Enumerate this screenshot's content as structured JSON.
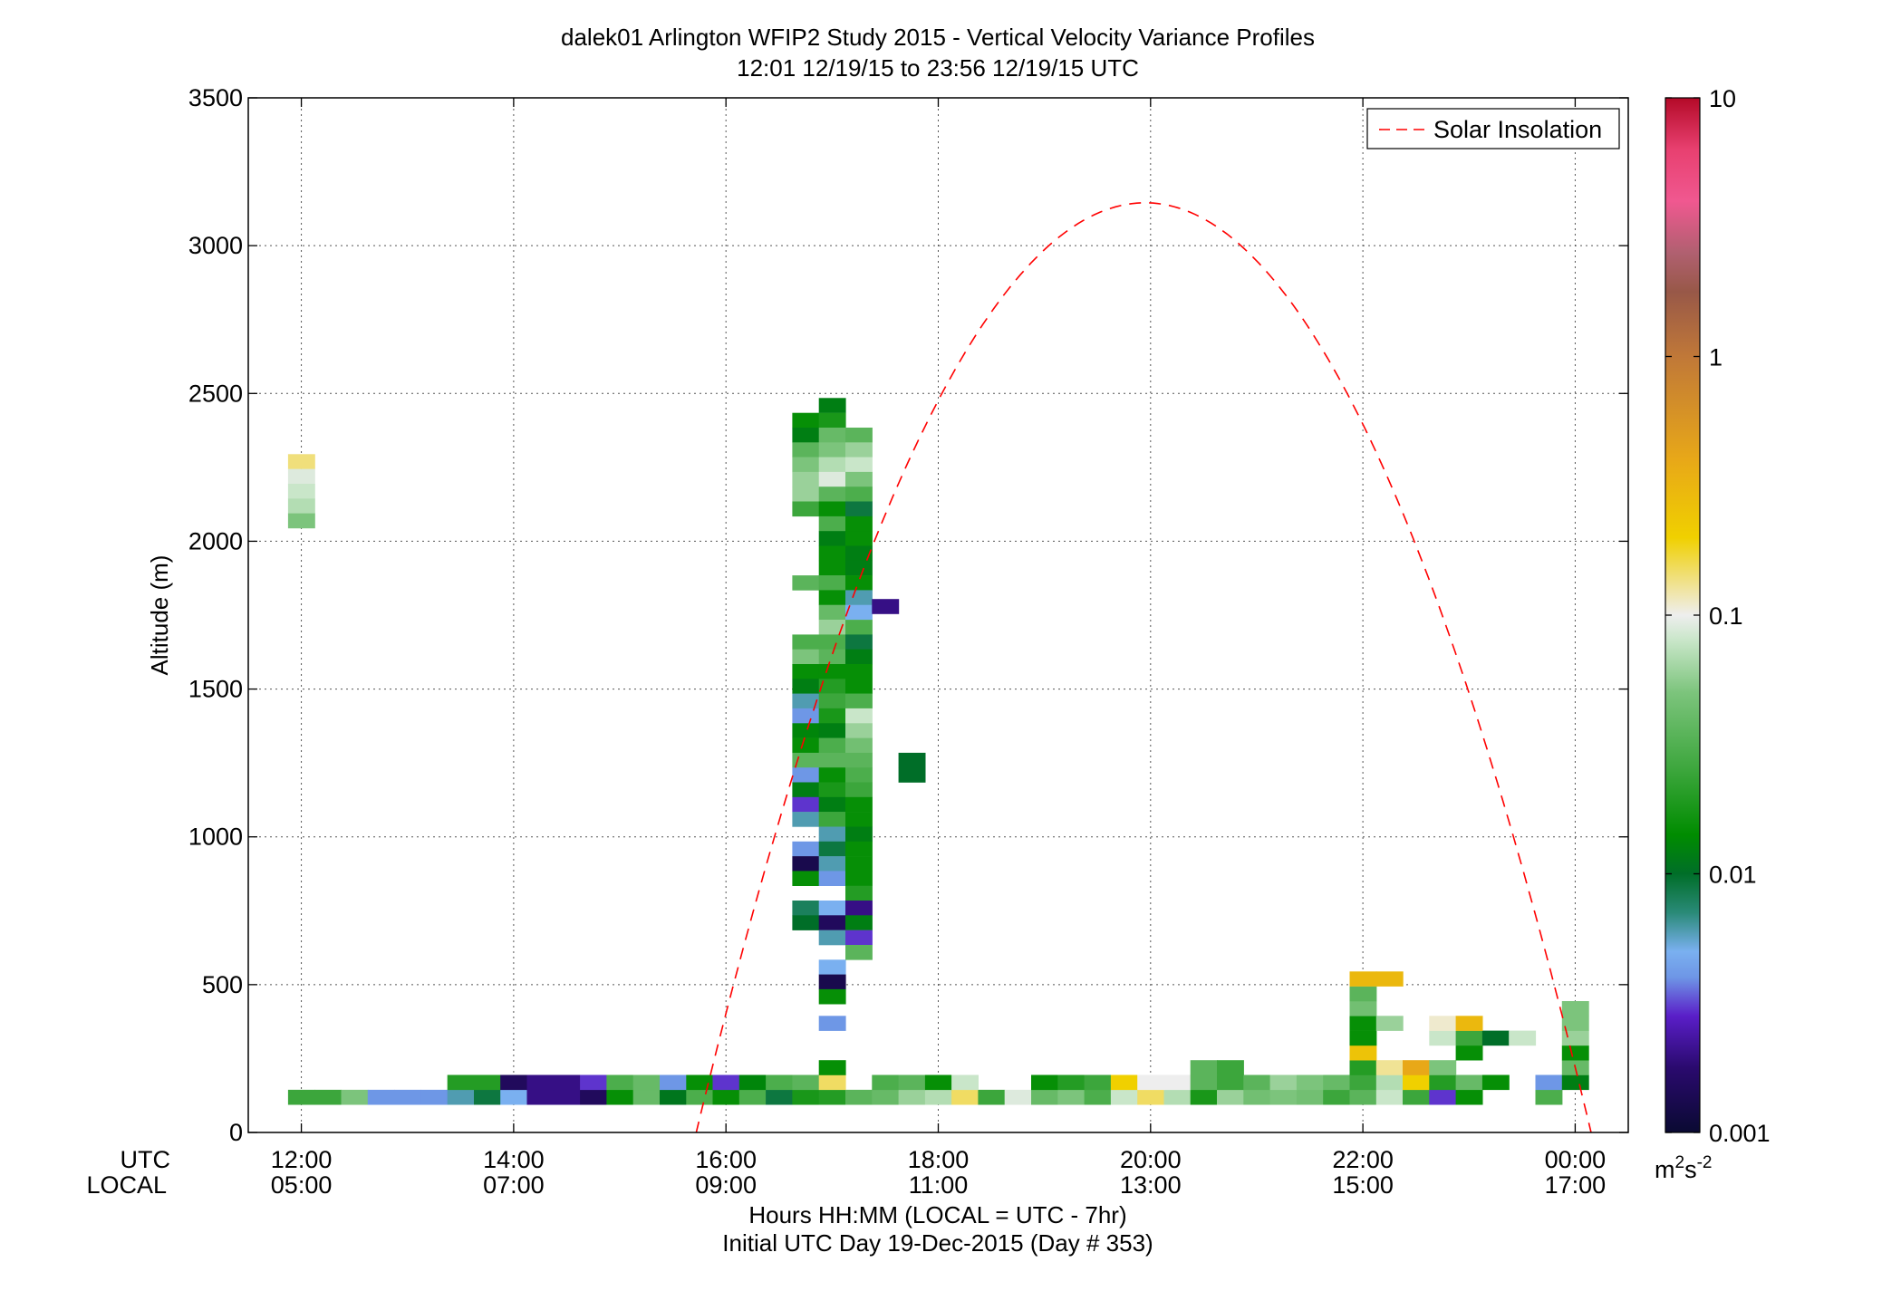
{
  "chart_data": {
    "type": "heatmap",
    "title": "dalek01 Arlington WFIP2 Study 2015 - Vertical Velocity Variance Profiles",
    "subtitle": "12:01 12/19/15 to 23:56 12/19/15  UTC",
    "ylabel": "Altitude (m)",
    "xlabel": "Hours HH:MM  (LOCAL = UTC - 7hr)",
    "xlabel2": "Initial UTC Day 19-Dec-2015 (Day # 353)",
    "x_row_labels": [
      "UTC",
      "LOCAL"
    ],
    "x_hours_range": [
      11.5,
      24.5
    ],
    "ylim": [
      0,
      3500
    ],
    "grid": true,
    "y_ticks": [
      0,
      500,
      1000,
      1500,
      2000,
      2500,
      3000,
      3500
    ],
    "x_ticks": [
      {
        "hour": 12,
        "utc": "12:00",
        "local": "05:00"
      },
      {
        "hour": 14,
        "utc": "14:00",
        "local": "07:00"
      },
      {
        "hour": 16,
        "utc": "16:00",
        "local": "09:00"
      },
      {
        "hour": 18,
        "utc": "18:00",
        "local": "11:00"
      },
      {
        "hour": 20,
        "utc": "20:00",
        "local": "13:00"
      },
      {
        "hour": 22,
        "utc": "22:00",
        "local": "15:00"
      },
      {
        "hour": 24,
        "utc": "00:00",
        "local": "17:00"
      }
    ],
    "colorbar": {
      "scale": "log",
      "range": [
        0.001,
        10
      ],
      "tick_labels": [
        "0.001",
        "0.01",
        "0.1",
        "1",
        "10"
      ],
      "unit_base": "m",
      "unit_sup1": "2",
      "unit_mid": "s",
      "unit_sup2": "-2"
    },
    "legend": {
      "label": "Solar Insolation",
      "placement": "top-right",
      "color": "#ff0000",
      "style": "dashed"
    },
    "solar_insolation_curve": {
      "start_hour": 15.72,
      "peak_hour": 19.95,
      "peak_altitude": 3145,
      "end_hour": 24.15
    },
    "cell_height_m": 50,
    "cells": [
      {
        "h": 12.0,
        "a": 2270,
        "v": 0.14
      },
      {
        "h": 12.0,
        "a": 2220,
        "v": 0.09
      },
      {
        "h": 12.0,
        "a": 2170,
        "v": 0.08
      },
      {
        "h": 12.0,
        "a": 2120,
        "v": 0.07
      },
      {
        "h": 12.0,
        "a": 2070,
        "v": 0.05
      },
      {
        "h": 12.0,
        "a": 120,
        "v": 0.025
      },
      {
        "h": 12.25,
        "a": 120,
        "v": 0.025
      },
      {
        "h": 12.5,
        "a": 120,
        "v": 0.05
      },
      {
        "h": 12.75,
        "a": 120,
        "v": 0.004
      },
      {
        "h": 13.0,
        "a": 120,
        "v": 0.004
      },
      {
        "h": 13.25,
        "a": 120,
        "v": 0.004
      },
      {
        "h": 13.5,
        "a": 120,
        "v": 0.006
      },
      {
        "h": 13.75,
        "a": 120,
        "v": 0.009
      },
      {
        "h": 14.0,
        "a": 120,
        "v": 0.005
      },
      {
        "h": 14.25,
        "a": 120,
        "v": 0.002
      },
      {
        "h": 14.5,
        "a": 120,
        "v": 0.002
      },
      {
        "h": 14.75,
        "a": 120,
        "v": 0.0015
      },
      {
        "h": 15.0,
        "a": 120,
        "v": 0.015
      },
      {
        "h": 15.25,
        "a": 120,
        "v": 0.04
      },
      {
        "h": 15.5,
        "a": 120,
        "v": 0.011
      },
      {
        "h": 15.75,
        "a": 120,
        "v": 0.03
      },
      {
        "h": 16.0,
        "a": 120,
        "v": 0.015
      },
      {
        "h": 16.25,
        "a": 120,
        "v": 0.03
      },
      {
        "h": 16.5,
        "a": 120,
        "v": 0.009
      },
      {
        "h": 16.75,
        "a": 120,
        "v": 0.018
      },
      {
        "h": 17.0,
        "a": 120,
        "v": 0.02
      },
      {
        "h": 17.25,
        "a": 120,
        "v": 0.035
      },
      {
        "h": 17.5,
        "a": 120,
        "v": 0.04
      },
      {
        "h": 17.75,
        "a": 120,
        "v": 0.06
      },
      {
        "h": 18.0,
        "a": 120,
        "v": 0.07
      },
      {
        "h": 18.25,
        "a": 120,
        "v": 0.15
      },
      {
        "h": 18.5,
        "a": 120,
        "v": 0.025
      },
      {
        "h": 18.75,
        "a": 120,
        "v": 0.09
      },
      {
        "h": 19.0,
        "a": 120,
        "v": 0.04
      },
      {
        "h": 19.25,
        "a": 120,
        "v": 0.05
      },
      {
        "h": 19.5,
        "a": 120,
        "v": 0.03
      },
      {
        "h": 19.75,
        "a": 120,
        "v": 0.08
      },
      {
        "h": 20.0,
        "a": 120,
        "v": 0.15
      },
      {
        "h": 20.25,
        "a": 120,
        "v": 0.07
      },
      {
        "h": 20.5,
        "a": 120,
        "v": 0.018
      },
      {
        "h": 20.75,
        "a": 120,
        "v": 0.06
      },
      {
        "h": 21.0,
        "a": 120,
        "v": 0.045
      },
      {
        "h": 21.25,
        "a": 120,
        "v": 0.05
      },
      {
        "h": 21.5,
        "a": 120,
        "v": 0.045
      },
      {
        "h": 21.75,
        "a": 120,
        "v": 0.025
      },
      {
        "h": 22.0,
        "a": 120,
        "v": 0.035
      },
      {
        "h": 22.25,
        "a": 120,
        "v": 0.08
      },
      {
        "h": 22.5,
        "a": 120,
        "v": 0.025
      },
      {
        "h": 22.75,
        "a": 120,
        "v": 0.003
      },
      {
        "h": 23.0,
        "a": 120,
        "v": 0.015
      },
      {
        "h": 23.75,
        "a": 120,
        "v": 0.03
      },
      {
        "h": 13.5,
        "a": 170,
        "v": 0.02
      },
      {
        "h": 13.75,
        "a": 170,
        "v": 0.02
      },
      {
        "h": 14.0,
        "a": 170,
        "v": 0.0015
      },
      {
        "h": 14.25,
        "a": 170,
        "v": 0.002
      },
      {
        "h": 14.5,
        "a": 170,
        "v": 0.002
      },
      {
        "h": 14.75,
        "a": 170,
        "v": 0.003
      },
      {
        "h": 15.0,
        "a": 170,
        "v": 0.03
      },
      {
        "h": 15.25,
        "a": 170,
        "v": 0.04
      },
      {
        "h": 15.5,
        "a": 170,
        "v": 0.004
      },
      {
        "h": 15.75,
        "a": 170,
        "v": 0.015
      },
      {
        "h": 16.0,
        "a": 170,
        "v": 0.003
      },
      {
        "h": 16.25,
        "a": 170,
        "v": 0.013
      },
      {
        "h": 16.5,
        "a": 170,
        "v": 0.03
      },
      {
        "h": 16.75,
        "a": 170,
        "v": 0.035
      },
      {
        "h": 17.0,
        "a": 170,
        "v": 0.15
      },
      {
        "h": 17.5,
        "a": 170,
        "v": 0.03
      },
      {
        "h": 17.75,
        "a": 170,
        "v": 0.035
      },
      {
        "h": 18.0,
        "a": 170,
        "v": 0.015
      },
      {
        "h": 18.25,
        "a": 170,
        "v": 0.08
      },
      {
        "h": 19.0,
        "a": 170,
        "v": 0.015
      },
      {
        "h": 19.25,
        "a": 170,
        "v": 0.02
      },
      {
        "h": 19.5,
        "a": 170,
        "v": 0.025
      },
      {
        "h": 19.75,
        "a": 170,
        "v": 0.2
      },
      {
        "h": 20.0,
        "a": 170,
        "v": 0.1
      },
      {
        "h": 20.25,
        "a": 170,
        "v": 0.1
      },
      {
        "h": 20.5,
        "a": 170,
        "v": 0.035
      },
      {
        "h": 20.75,
        "a": 170,
        "v": 0.025
      },
      {
        "h": 21.0,
        "a": 170,
        "v": 0.035
      },
      {
        "h": 21.25,
        "a": 170,
        "v": 0.06
      },
      {
        "h": 21.5,
        "a": 170,
        "v": 0.05
      },
      {
        "h": 21.75,
        "a": 170,
        "v": 0.04
      },
      {
        "h": 22.0,
        "a": 170,
        "v": 0.025
      },
      {
        "h": 22.25,
        "a": 170,
        "v": 0.07
      },
      {
        "h": 22.5,
        "a": 170,
        "v": 0.2
      },
      {
        "h": 22.75,
        "a": 170,
        "v": 0.02
      },
      {
        "h": 23.0,
        "a": 170,
        "v": 0.04
      },
      {
        "h": 23.25,
        "a": 170,
        "v": 0.015
      },
      {
        "h": 23.75,
        "a": 170,
        "v": 0.004
      },
      {
        "h": 24.0,
        "a": 170,
        "v": 0.012
      },
      {
        "h": 17.0,
        "a": 220,
        "v": 0.015
      },
      {
        "h": 20.5,
        "a": 220,
        "v": 0.035
      },
      {
        "h": 20.75,
        "a": 220,
        "v": 0.025
      },
      {
        "h": 22.0,
        "a": 220,
        "v": 0.02
      },
      {
        "h": 22.25,
        "a": 220,
        "v": 0.13
      },
      {
        "h": 22.5,
        "a": 220,
        "v": 0.4
      },
      {
        "h": 22.75,
        "a": 220,
        "v": 0.05
      },
      {
        "h": 24.0,
        "a": 220,
        "v": 0.04
      },
      {
        "h": 22.0,
        "a": 270,
        "v": 0.25
      },
      {
        "h": 23.0,
        "a": 270,
        "v": 0.015
      },
      {
        "h": 24.0,
        "a": 270,
        "v": 0.015
      },
      {
        "h": 22.0,
        "a": 320,
        "v": 0.015
      },
      {
        "h": 22.75,
        "a": 320,
        "v": 0.08
      },
      {
        "h": 23.0,
        "a": 320,
        "v": 0.025
      },
      {
        "h": 23.25,
        "a": 320,
        "v": 0.01
      },
      {
        "h": 23.5,
        "a": 320,
        "v": 0.08
      },
      {
        "h": 24.0,
        "a": 320,
        "v": 0.06
      },
      {
        "h": 22.0,
        "a": 370,
        "v": 0.015
      },
      {
        "h": 22.25,
        "a": 370,
        "v": 0.06
      },
      {
        "h": 22.75,
        "a": 370,
        "v": 0.11
      },
      {
        "h": 23.0,
        "a": 370,
        "v": 0.3
      },
      {
        "h": 24.0,
        "a": 370,
        "v": 0.05
      },
      {
        "h": 22.0,
        "a": 420,
        "v": 0.045
      },
      {
        "h": 24.0,
        "a": 420,
        "v": 0.05
      },
      {
        "h": 22.0,
        "a": 470,
        "v": 0.035
      },
      {
        "h": 22.0,
        "a": 520,
        "v": 0.3
      },
      {
        "h": 22.25,
        "a": 520,
        "v": 0.3
      },
      {
        "h": 16.75,
        "a": 2410,
        "v": 0.015
      },
      {
        "h": 16.75,
        "a": 2360,
        "v": 0.012
      },
      {
        "h": 16.75,
        "a": 2310,
        "v": 0.035
      },
      {
        "h": 16.75,
        "a": 2260,
        "v": 0.05
      },
      {
        "h": 16.75,
        "a": 2210,
        "v": 0.06
      },
      {
        "h": 16.75,
        "a": 2160,
        "v": 0.06
      },
      {
        "h": 16.75,
        "a": 2110,
        "v": 0.025
      },
      {
        "h": 16.75,
        "a": 1860,
        "v": 0.035
      },
      {
        "h": 16.75,
        "a": 1660,
        "v": 0.03
      },
      {
        "h": 16.75,
        "a": 1610,
        "v": 0.05
      },
      {
        "h": 16.75,
        "a": 1560,
        "v": 0.015
      },
      {
        "h": 16.75,
        "a": 1510,
        "v": 0.012
      },
      {
        "h": 16.75,
        "a": 1460,
        "v": 0.006
      },
      {
        "h": 16.75,
        "a": 1410,
        "v": 0.004
      },
      {
        "h": 16.75,
        "a": 1360,
        "v": 0.013
      },
      {
        "h": 16.75,
        "a": 1310,
        "v": 0.015
      },
      {
        "h": 16.75,
        "a": 1260,
        "v": 0.035
      },
      {
        "h": 16.75,
        "a": 1210,
        "v": 0.004
      },
      {
        "h": 16.75,
        "a": 1160,
        "v": 0.012
      },
      {
        "h": 16.75,
        "a": 1110,
        "v": 0.003
      },
      {
        "h": 16.75,
        "a": 1060,
        "v": 0.006
      },
      {
        "h": 16.75,
        "a": 960,
        "v": 0.004
      },
      {
        "h": 16.75,
        "a": 910,
        "v": 0.0013
      },
      {
        "h": 16.75,
        "a": 860,
        "v": 0.015
      },
      {
        "h": 16.75,
        "a": 760,
        "v": 0.008
      },
      {
        "h": 16.75,
        "a": 710,
        "v": 0.01
      },
      {
        "h": 17.0,
        "a": 2460,
        "v": 0.012
      },
      {
        "h": 17.0,
        "a": 2410,
        "v": 0.018
      },
      {
        "h": 17.0,
        "a": 2360,
        "v": 0.04
      },
      {
        "h": 17.0,
        "a": 2310,
        "v": 0.05
      },
      {
        "h": 17.0,
        "a": 2260,
        "v": 0.07
      },
      {
        "h": 17.0,
        "a": 2210,
        "v": 0.09
      },
      {
        "h": 17.0,
        "a": 2160,
        "v": 0.035
      },
      {
        "h": 17.0,
        "a": 2110,
        "v": 0.015
      },
      {
        "h": 17.0,
        "a": 2060,
        "v": 0.03
      },
      {
        "h": 17.0,
        "a": 2010,
        "v": 0.012
      },
      {
        "h": 17.0,
        "a": 1960,
        "v": 0.015
      },
      {
        "h": 17.0,
        "a": 1910,
        "v": 0.015
      },
      {
        "h": 17.0,
        "a": 1860,
        "v": 0.03
      },
      {
        "h": 17.0,
        "a": 1810,
        "v": 0.015
      },
      {
        "h": 17.0,
        "a": 1760,
        "v": 0.04
      },
      {
        "h": 17.0,
        "a": 1710,
        "v": 0.06
      },
      {
        "h": 17.0,
        "a": 1660,
        "v": 0.03
      },
      {
        "h": 17.0,
        "a": 1610,
        "v": 0.035
      },
      {
        "h": 17.0,
        "a": 1560,
        "v": 0.015
      },
      {
        "h": 17.0,
        "a": 1510,
        "v": 0.02
      },
      {
        "h": 17.0,
        "a": 1460,
        "v": 0.025
      },
      {
        "h": 17.0,
        "a": 1410,
        "v": 0.018
      },
      {
        "h": 17.0,
        "a": 1360,
        "v": 0.012
      },
      {
        "h": 17.0,
        "a": 1310,
        "v": 0.03
      },
      {
        "h": 17.0,
        "a": 1260,
        "v": 0.035
      },
      {
        "h": 17.0,
        "a": 1210,
        "v": 0.015
      },
      {
        "h": 17.0,
        "a": 1160,
        "v": 0.018
      },
      {
        "h": 17.0,
        "a": 1110,
        "v": 0.012
      },
      {
        "h": 17.0,
        "a": 1060,
        "v": 0.025
      },
      {
        "h": 17.0,
        "a": 1010,
        "v": 0.006
      },
      {
        "h": 17.0,
        "a": 960,
        "v": 0.009
      },
      {
        "h": 17.0,
        "a": 910,
        "v": 0.006
      },
      {
        "h": 17.0,
        "a": 860,
        "v": 0.004
      },
      {
        "h": 17.0,
        "a": 760,
        "v": 0.005
      },
      {
        "h": 17.0,
        "a": 710,
        "v": 0.0015
      },
      {
        "h": 17.0,
        "a": 660,
        "v": 0.006
      },
      {
        "h": 17.0,
        "a": 560,
        "v": 0.005
      },
      {
        "h": 17.0,
        "a": 510,
        "v": 0.0013
      },
      {
        "h": 17.0,
        "a": 460,
        "v": 0.015
      },
      {
        "h": 17.0,
        "a": 370,
        "v": 0.004
      },
      {
        "h": 17.25,
        "a": 2360,
        "v": 0.035
      },
      {
        "h": 17.25,
        "a": 2310,
        "v": 0.06
      },
      {
        "h": 17.25,
        "a": 2260,
        "v": 0.08
      },
      {
        "h": 17.25,
        "a": 2210,
        "v": 0.05
      },
      {
        "h": 17.25,
        "a": 2160,
        "v": 0.03
      },
      {
        "h": 17.25,
        "a": 2110,
        "v": 0.009
      },
      {
        "h": 17.25,
        "a": 2060,
        "v": 0.015
      },
      {
        "h": 17.25,
        "a": 2010,
        "v": 0.015
      },
      {
        "h": 17.25,
        "a": 1960,
        "v": 0.012
      },
      {
        "h": 17.25,
        "a": 1910,
        "v": 0.012
      },
      {
        "h": 17.25,
        "a": 1860,
        "v": 0.015
      },
      {
        "h": 17.25,
        "a": 1810,
        "v": 0.006
      },
      {
        "h": 17.25,
        "a": 1760,
        "v": 0.005
      },
      {
        "h": 17.25,
        "a": 1710,
        "v": 0.03
      },
      {
        "h": 17.25,
        "a": 1660,
        "v": 0.009
      },
      {
        "h": 17.25,
        "a": 1610,
        "v": 0.012
      },
      {
        "h": 17.25,
        "a": 1560,
        "v": 0.015
      },
      {
        "h": 17.25,
        "a": 1510,
        "v": 0.015
      },
      {
        "h": 17.25,
        "a": 1460,
        "v": 0.03
      },
      {
        "h": 17.25,
        "a": 1410,
        "v": 0.08
      },
      {
        "h": 17.25,
        "a": 1360,
        "v": 0.06
      },
      {
        "h": 17.25,
        "a": 1310,
        "v": 0.045
      },
      {
        "h": 17.25,
        "a": 1260,
        "v": 0.035
      },
      {
        "h": 17.25,
        "a": 1210,
        "v": 0.03
      },
      {
        "h": 17.25,
        "a": 1160,
        "v": 0.025
      },
      {
        "h": 17.25,
        "a": 1110,
        "v": 0.015
      },
      {
        "h": 17.25,
        "a": 1060,
        "v": 0.015
      },
      {
        "h": 17.25,
        "a": 1010,
        "v": 0.012
      },
      {
        "h": 17.25,
        "a": 960,
        "v": 0.015
      },
      {
        "h": 17.25,
        "a": 910,
        "v": 0.015
      },
      {
        "h": 17.25,
        "a": 860,
        "v": 0.015
      },
      {
        "h": 17.25,
        "a": 810,
        "v": 0.02
      },
      {
        "h": 17.25,
        "a": 760,
        "v": 0.002
      },
      {
        "h": 17.25,
        "a": 710,
        "v": 0.012
      },
      {
        "h": 17.25,
        "a": 660,
        "v": 0.003
      },
      {
        "h": 17.25,
        "a": 610,
        "v": 0.035
      },
      {
        "h": 17.5,
        "a": 1780,
        "v": 0.002
      },
      {
        "h": 17.75,
        "a": 1260,
        "v": 0.01
      },
      {
        "h": 17.75,
        "a": 1210,
        "v": 0.01
      }
    ]
  }
}
